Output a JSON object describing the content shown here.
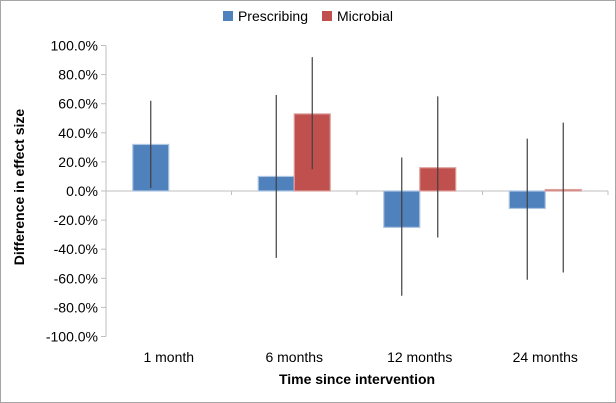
{
  "frame": {
    "border_color": "#a6a6a6",
    "background": "#ffffff"
  },
  "chart_data": {
    "type": "bar",
    "title": "",
    "xlabel": "Time since intervention",
    "ylabel": "Difference in effect size",
    "categories": [
      "1 month",
      "6 months",
      "12 months",
      "24 months"
    ],
    "series": [
      {
        "name": "Prescribing",
        "color": "#4f81bd",
        "border_color": "#aec6e2",
        "values": [
          32,
          10,
          -25,
          -12
        ],
        "error_low": [
          2,
          -46,
          -72,
          -61
        ],
        "error_high": [
          62,
          66,
          23,
          36
        ]
      },
      {
        "name": "Microbial",
        "color": "#c0504d",
        "border_color": "#dda09d",
        "values": [
          0,
          53,
          16,
          1
        ],
        "error_low": [
          null,
          15,
          -32,
          -56
        ],
        "error_high": [
          null,
          92,
          65,
          47
        ]
      }
    ],
    "y_axis": {
      "min": -100,
      "max": 100,
      "step": 20,
      "tick_labels": [
        "100.0%",
        "80.0%",
        "60.0%",
        "40.0%",
        "20.0%",
        "0.0%",
        "-20.0%",
        "-40.0%",
        "-60.0%",
        "-80.0%",
        "-100.0%"
      ]
    },
    "legend_position": "top",
    "grid": "off",
    "axis_color": "#bfbfbf",
    "error_bar_color": "#3f3f3f",
    "text_color": "#000000"
  }
}
